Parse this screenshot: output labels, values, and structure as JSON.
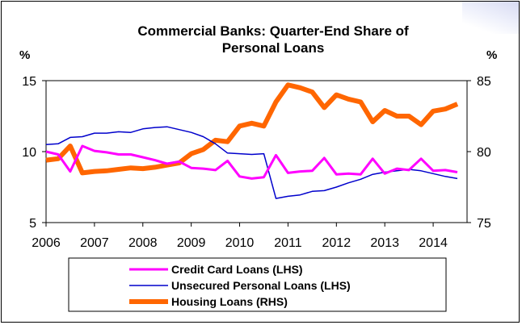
{
  "chart_data": {
    "type": "line",
    "title_line1": "Commercial Banks: Quarter-End Share of",
    "title_line2": "Personal Loans",
    "ylabel_left": "%",
    "ylabel_right": "%",
    "x_ticks": [
      "2006",
      "2007",
      "2008",
      "2009",
      "2010",
      "2011",
      "2012",
      "2013",
      "2014"
    ],
    "x_range": [
      2006.0,
      2014.7
    ],
    "ylim_left": [
      5,
      15
    ],
    "ylim_right": [
      75,
      85
    ],
    "y_ticks_left": [
      "15",
      "10",
      "5"
    ],
    "y_ticks_right": [
      "85",
      "80",
      "75"
    ],
    "x": [
      2006.0,
      2006.25,
      2006.5,
      2006.75,
      2007.0,
      2007.25,
      2007.5,
      2007.75,
      2008.0,
      2008.25,
      2008.5,
      2008.75,
      2009.0,
      2009.25,
      2009.5,
      2009.75,
      2010.0,
      2010.25,
      2010.5,
      2010.75,
      2011.0,
      2011.25,
      2011.5,
      2011.75,
      2012.0,
      2012.25,
      2012.5,
      2012.75,
      2013.0,
      2013.25,
      2013.5,
      2013.75,
      2014.0,
      2014.25,
      2014.5
    ],
    "series": [
      {
        "name": "Credit Card Loans (LHS)",
        "axis": "left",
        "color": "#ff00ff",
        "values": [
          10.0,
          9.8,
          8.6,
          10.4,
          10.05,
          9.95,
          9.8,
          9.8,
          9.6,
          9.4,
          9.15,
          9.3,
          8.85,
          8.8,
          8.7,
          9.35,
          8.25,
          8.1,
          8.2,
          9.75,
          8.5,
          8.6,
          8.65,
          9.55,
          8.4,
          8.45,
          8.4,
          9.5,
          8.45,
          8.8,
          8.7,
          9.5,
          8.65,
          8.7,
          8.55
        ]
      },
      {
        "name": "Unsecured Personal Loans (LHS)",
        "axis": "left",
        "color": "#0000cc",
        "values": [
          10.5,
          10.55,
          11.0,
          11.05,
          11.3,
          11.3,
          11.4,
          11.35,
          11.6,
          11.7,
          11.75,
          11.55,
          11.35,
          11.05,
          10.55,
          9.9,
          9.85,
          9.8,
          9.85,
          6.7,
          6.85,
          6.95,
          7.2,
          7.25,
          7.5,
          7.8,
          8.05,
          8.4,
          8.55,
          8.65,
          8.75,
          8.65,
          8.45,
          8.25,
          8.1
        ]
      },
      {
        "name": "Housing Loans (RHS)",
        "axis": "right",
        "color": "#ff6600",
        "values": [
          79.4,
          79.5,
          80.4,
          78.5,
          78.6,
          78.65,
          78.75,
          78.85,
          78.8,
          78.9,
          79.05,
          79.2,
          79.85,
          80.15,
          80.8,
          80.7,
          81.8,
          82.0,
          81.8,
          83.5,
          84.7,
          84.5,
          84.2,
          83.1,
          84.0,
          83.7,
          83.5,
          82.1,
          82.9,
          82.5,
          82.5,
          81.9,
          82.85,
          83.0,
          83.35
        ]
      }
    ],
    "legend_position": "bottom",
    "grid": false
  }
}
